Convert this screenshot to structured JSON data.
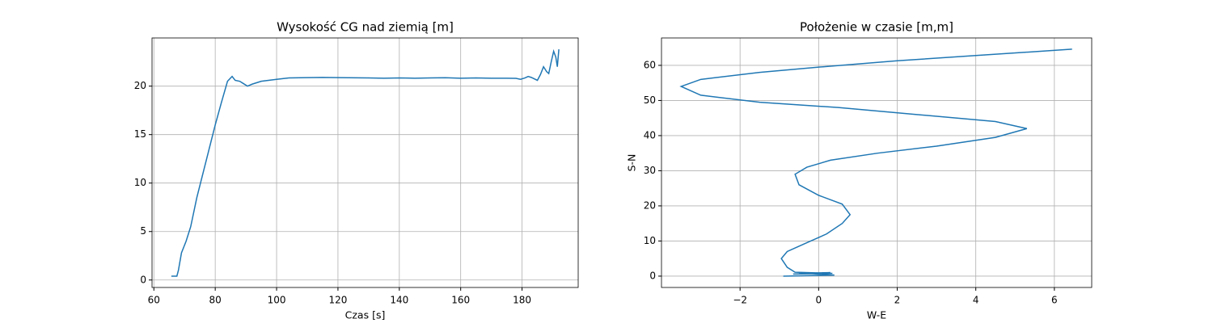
{
  "chart_data": [
    {
      "type": "line",
      "title": "Wysokość CG nad ziemią [m]",
      "xlabel": "Czas [s]",
      "color": "#1f77b4",
      "grid": true,
      "xlim": [
        59.4,
        198.3
      ],
      "ylim": [
        -0.77,
        24.97
      ],
      "xticks": [
        60,
        80,
        100,
        120,
        140,
        160,
        180
      ],
      "yticks": [
        0,
        5,
        10,
        15,
        20
      ],
      "x": [
        65.7,
        67.5,
        68,
        69,
        70.5,
        72,
        74,
        76,
        78,
        80,
        82,
        84,
        85.5,
        86.5,
        88,
        89,
        90.5,
        92,
        95,
        100,
        104,
        110,
        115,
        120,
        130,
        135,
        140,
        145,
        150,
        155,
        160,
        165,
        170,
        175,
        178,
        179.5,
        181,
        182,
        183,
        185,
        186,
        187,
        188,
        188.7,
        189.5,
        190.3,
        191,
        191.5,
        192
      ],
      "values": [
        0.4,
        0.4,
        1,
        2.8,
        4,
        5.5,
        8.5,
        11,
        13.5,
        16,
        18.3,
        20.5,
        21,
        20.6,
        20.5,
        20.3,
        20,
        20.2,
        20.5,
        20.7,
        20.85,
        20.88,
        20.9,
        20.88,
        20.85,
        20.82,
        20.85,
        20.82,
        20.85,
        20.87,
        20.82,
        20.85,
        20.82,
        20.82,
        20.8,
        20.7,
        20.85,
        21,
        20.9,
        20.6,
        21.2,
        22,
        21.5,
        21.3,
        22.5,
        23.6,
        23,
        22,
        23.8
      ]
    },
    {
      "type": "line",
      "title": "Położenie w czasie [m,m]",
      "xlabel": "W-E",
      "ylabel": "S-N",
      "color": "#1f77b4",
      "grid": true,
      "xlim": [
        -4.0,
        6.95
      ],
      "ylim": [
        -3.23,
        67.8
      ],
      "xticks": [
        {
          "value": -2,
          "label": "−2"
        },
        0,
        2,
        4,
        6
      ],
      "yticks": [
        0,
        10,
        20,
        30,
        40,
        50,
        60
      ],
      "x": [
        -0.9,
        0.4,
        -0.5,
        0.3,
        -0.65,
        0.35,
        -0.6,
        -0.8,
        -0.95,
        -0.8,
        -0.3,
        0.2,
        0.6,
        0.8,
        0.6,
        0,
        -0.5,
        -0.6,
        -0.3,
        0.3,
        1.5,
        3,
        4.5,
        5.3,
        4.5,
        2.5,
        0.5,
        -1.5,
        -3,
        -3.5,
        -3,
        -1.5,
        0,
        2,
        4,
        6.45
      ],
      "values": [
        0,
        0.3,
        0.9,
        1.0,
        0.6,
        0.8,
        1.1,
        2.5,
        5,
        7,
        9.5,
        12,
        15,
        17.5,
        20.5,
        23,
        26,
        29,
        31,
        33,
        35,
        37,
        39.5,
        42,
        44,
        46,
        48,
        49.5,
        51.5,
        54,
        56,
        58,
        59.5,
        61.3,
        62.8,
        64.6
      ]
    }
  ]
}
